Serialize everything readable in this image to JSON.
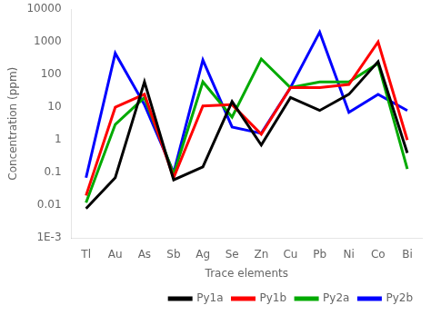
{
  "chart_data": {
    "type": "line",
    "categories": [
      "Tl",
      "Au",
      "As",
      "Sb",
      "Ag",
      "Se",
      "Zn",
      "Cu",
      "Pb",
      "Ni",
      "Co",
      "Bi"
    ],
    "series": [
      {
        "name": "Py1a",
        "color": "#000000",
        "values": [
          0.008,
          0.07,
          60,
          0.06,
          0.15,
          15,
          0.7,
          20,
          8,
          25,
          250,
          0.4
        ]
      },
      {
        "name": "Py1b",
        "color": "#ff0000",
        "values": [
          0.02,
          10,
          25,
          0.07,
          11,
          12,
          1.5,
          40,
          40,
          50,
          1000,
          1.0
        ]
      },
      {
        "name": "Py2a",
        "color": "#00aa00",
        "values": [
          0.012,
          3,
          20,
          0.09,
          60,
          5,
          300,
          40,
          60,
          60,
          220,
          0.13
        ]
      },
      {
        "name": "Py2b",
        "color": "#0000ff",
        "values": [
          0.07,
          450,
          12,
          0.1,
          280,
          2.5,
          1.6,
          40,
          2000,
          7,
          25,
          8
        ]
      }
    ],
    "xlabel": "Trace elements",
    "ylabel": "Concentration (ppm)",
    "log": "y",
    "ylim": [
      0.001,
      10000
    ],
    "yticks": [
      {
        "value": 0.001,
        "label": "1E-3"
      },
      0.01,
      0.1,
      1,
      10,
      100,
      1000,
      10000
    ],
    "grid": false,
    "legend": "lower right"
  }
}
